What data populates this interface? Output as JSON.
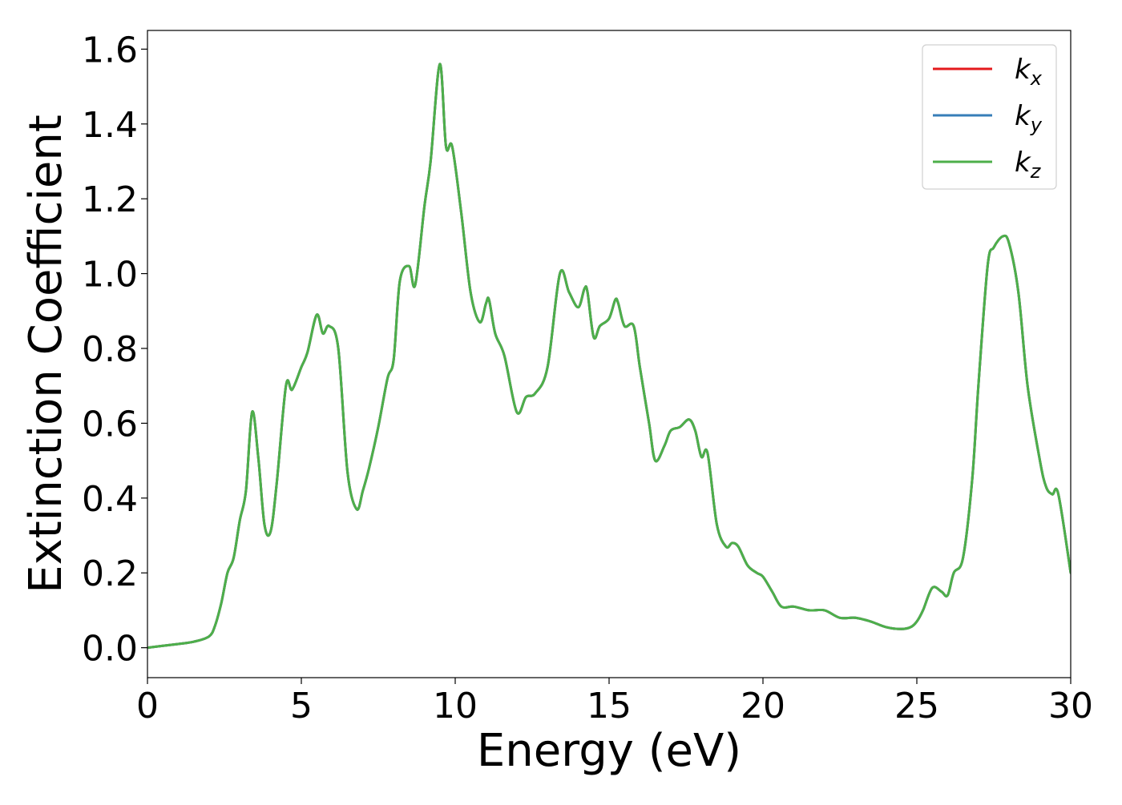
{
  "chart_data": {
    "type": "line",
    "xlabel": "Energy (eV)",
    "ylabel": "Extinction Coefficient",
    "xlim": [
      0,
      30
    ],
    "ylim": [
      -0.08,
      1.65
    ],
    "x_ticks": [
      0,
      5,
      10,
      15,
      20,
      25,
      30
    ],
    "x_tick_labels": [
      "0",
      "5",
      "10",
      "15",
      "20",
      "25",
      "30"
    ],
    "y_ticks": [
      0.0,
      0.2,
      0.4,
      0.6,
      0.8,
      1.0,
      1.2,
      1.4,
      1.6
    ],
    "y_tick_labels": [
      "0.0",
      "0.2",
      "0.4",
      "0.6",
      "0.8",
      "1.0",
      "1.2",
      "1.4",
      "1.6"
    ],
    "grid": false,
    "legend_position": "top-right",
    "x": [
      0,
      0.5,
      1.0,
      1.5,
      2.0,
      2.2,
      2.4,
      2.6,
      2.8,
      3.0,
      3.2,
      3.4,
      3.6,
      3.8,
      4.0,
      4.2,
      4.5,
      4.7,
      5.0,
      5.2,
      5.5,
      5.7,
      5.9,
      6.2,
      6.5,
      6.8,
      7.0,
      7.2,
      7.5,
      7.8,
      8.0,
      8.2,
      8.5,
      8.7,
      9.0,
      9.2,
      9.5,
      9.7,
      9.9,
      10.2,
      10.5,
      10.8,
      11.0,
      11.1,
      11.3,
      11.6,
      12.0,
      12.3,
      12.6,
      13.0,
      13.4,
      13.7,
      14.0,
      14.2,
      14.3,
      14.5,
      14.7,
      15.0,
      15.2,
      15.3,
      15.5,
      15.8,
      16.0,
      16.3,
      16.5,
      16.8,
      17.0,
      17.3,
      17.6,
      17.8,
      18.0,
      18.2,
      18.5,
      18.8,
      19.0,
      19.2,
      19.5,
      19.8,
      20.0,
      20.3,
      20.6,
      21.0,
      21.5,
      22.0,
      22.5,
      23.0,
      23.5,
      24.0,
      24.5,
      24.8,
      25.0,
      25.2,
      25.5,
      25.8,
      26.0,
      26.2,
      26.5,
      26.8,
      27.0,
      27.3,
      27.5,
      27.8,
      28.0,
      28.3,
      28.6,
      29.0,
      29.2,
      29.4,
      29.6,
      30.0
    ],
    "series": [
      {
        "name": "k_x",
        "color": "#e41a1c",
        "values": [
          0.0,
          0.005,
          0.01,
          0.016,
          0.03,
          0.06,
          0.12,
          0.2,
          0.24,
          0.34,
          0.42,
          0.63,
          0.51,
          0.33,
          0.31,
          0.44,
          0.7,
          0.69,
          0.75,
          0.79,
          0.89,
          0.84,
          0.86,
          0.8,
          0.47,
          0.37,
          0.42,
          0.48,
          0.59,
          0.72,
          0.77,
          0.98,
          1.02,
          0.97,
          1.18,
          1.3,
          1.56,
          1.34,
          1.34,
          1.16,
          0.95,
          0.87,
          0.92,
          0.93,
          0.84,
          0.78,
          0.63,
          0.67,
          0.68,
          0.75,
          1.0,
          0.95,
          0.91,
          0.96,
          0.95,
          0.83,
          0.86,
          0.88,
          0.93,
          0.92,
          0.86,
          0.86,
          0.75,
          0.6,
          0.5,
          0.54,
          0.58,
          0.59,
          0.61,
          0.58,
          0.51,
          0.52,
          0.33,
          0.27,
          0.28,
          0.27,
          0.22,
          0.2,
          0.19,
          0.15,
          0.11,
          0.11,
          0.1,
          0.1,
          0.08,
          0.08,
          0.07,
          0.055,
          0.05,
          0.055,
          0.07,
          0.1,
          0.16,
          0.15,
          0.14,
          0.2,
          0.24,
          0.45,
          0.7,
          1.02,
          1.07,
          1.1,
          1.08,
          0.95,
          0.7,
          0.5,
          0.43,
          0.41,
          0.41,
          0.2
        ]
      },
      {
        "name": "k_y",
        "color": "#377eb8",
        "values": [
          0.0,
          0.005,
          0.01,
          0.016,
          0.03,
          0.06,
          0.12,
          0.2,
          0.24,
          0.34,
          0.42,
          0.63,
          0.51,
          0.33,
          0.31,
          0.44,
          0.7,
          0.69,
          0.75,
          0.79,
          0.89,
          0.84,
          0.86,
          0.8,
          0.47,
          0.37,
          0.42,
          0.48,
          0.59,
          0.72,
          0.77,
          0.98,
          1.02,
          0.97,
          1.18,
          1.3,
          1.56,
          1.34,
          1.34,
          1.16,
          0.95,
          0.87,
          0.92,
          0.93,
          0.84,
          0.78,
          0.63,
          0.67,
          0.68,
          0.75,
          1.0,
          0.95,
          0.91,
          0.96,
          0.95,
          0.83,
          0.86,
          0.88,
          0.93,
          0.92,
          0.86,
          0.86,
          0.75,
          0.6,
          0.5,
          0.54,
          0.58,
          0.59,
          0.61,
          0.58,
          0.51,
          0.52,
          0.33,
          0.27,
          0.28,
          0.27,
          0.22,
          0.2,
          0.19,
          0.15,
          0.11,
          0.11,
          0.1,
          0.1,
          0.08,
          0.08,
          0.07,
          0.055,
          0.05,
          0.055,
          0.07,
          0.1,
          0.16,
          0.15,
          0.14,
          0.2,
          0.24,
          0.45,
          0.7,
          1.02,
          1.07,
          1.1,
          1.08,
          0.95,
          0.7,
          0.5,
          0.43,
          0.41,
          0.41,
          0.2
        ]
      },
      {
        "name": "k_z",
        "color": "#4daf4a",
        "values": [
          0.0,
          0.005,
          0.01,
          0.016,
          0.03,
          0.06,
          0.12,
          0.2,
          0.24,
          0.34,
          0.42,
          0.63,
          0.51,
          0.33,
          0.31,
          0.44,
          0.7,
          0.69,
          0.75,
          0.79,
          0.89,
          0.84,
          0.86,
          0.8,
          0.47,
          0.37,
          0.42,
          0.48,
          0.59,
          0.72,
          0.77,
          0.98,
          1.02,
          0.97,
          1.18,
          1.3,
          1.56,
          1.34,
          1.34,
          1.16,
          0.95,
          0.87,
          0.92,
          0.93,
          0.84,
          0.78,
          0.63,
          0.67,
          0.68,
          0.75,
          1.0,
          0.95,
          0.91,
          0.96,
          0.95,
          0.83,
          0.86,
          0.88,
          0.93,
          0.92,
          0.86,
          0.86,
          0.75,
          0.6,
          0.5,
          0.54,
          0.58,
          0.59,
          0.61,
          0.58,
          0.51,
          0.52,
          0.33,
          0.27,
          0.28,
          0.27,
          0.22,
          0.2,
          0.19,
          0.15,
          0.11,
          0.11,
          0.1,
          0.1,
          0.08,
          0.08,
          0.07,
          0.055,
          0.05,
          0.055,
          0.07,
          0.1,
          0.16,
          0.15,
          0.14,
          0.2,
          0.24,
          0.45,
          0.7,
          1.02,
          1.07,
          1.1,
          1.08,
          0.95,
          0.7,
          0.5,
          0.43,
          0.41,
          0.41,
          0.2
        ]
      }
    ],
    "legend": [
      {
        "base": "k",
        "sub": "x",
        "color": "#e41a1c"
      },
      {
        "base": "k",
        "sub": "y",
        "color": "#377eb8"
      },
      {
        "base": "k",
        "sub": "z",
        "color": "#4daf4a"
      }
    ]
  }
}
